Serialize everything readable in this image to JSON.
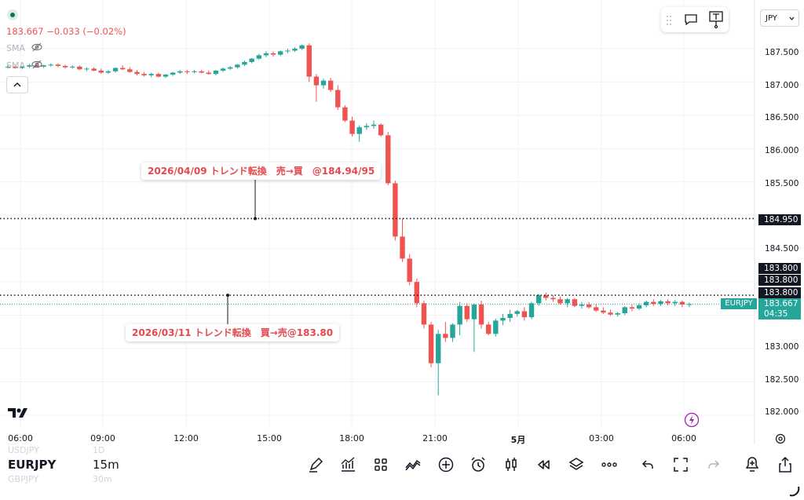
{
  "header": {
    "ohlc": "183.667  −0.033 (−0.02%)",
    "indicators": [
      "SMA",
      "SMA"
    ]
  },
  "currency": "JPY",
  "price_axis": {
    "ticks": [
      "187.500",
      "187.000",
      "186.500",
      "186.000",
      "185.500",
      "184.500",
      "183.000",
      "182.500",
      "182.000"
    ],
    "line_labels": [
      "184.950",
      "183.800",
      "183.800",
      "183.800"
    ],
    "last_price": "183.667",
    "countdown": "04:35",
    "symbol_tag": "EURJPY"
  },
  "time_axis": [
    "06:00",
    "09:00",
    "12:00",
    "15:00",
    "18:00",
    "21:00",
    "5月",
    "03:00",
    "06:00"
  ],
  "annotations": {
    "upper": "2026/04/09  トレンド転換　売→買　@184.94/95",
    "lower": "2026/03/11 トレンド転換　買→売@183.80"
  },
  "bottom": {
    "symbol": "EURJPY",
    "interval": "15m",
    "ghost_prev_symbol": "USDJPY",
    "ghost_prev_interval": "1D",
    "ghost_next_symbol": "GBPJPY",
    "ghost_next_interval": "30m"
  },
  "colors": {
    "up": "#26a69a",
    "down": "#ef5350",
    "label": "#e5484d"
  },
  "chart_data": {
    "type": "candlestick",
    "x": [
      "06:00",
      "06:15",
      "06:30",
      "06:45",
      "07:00",
      "07:15",
      "07:30",
      "07:45",
      "08:00",
      "08:15",
      "08:30",
      "08:45",
      "09:00",
      "09:15",
      "09:30",
      "09:45",
      "10:00",
      "10:15",
      "10:30",
      "10:45",
      "11:00",
      "11:15",
      "11:30",
      "11:45",
      "12:00",
      "12:15",
      "12:30",
      "12:45",
      "13:00",
      "13:15",
      "13:30",
      "13:45",
      "14:00",
      "14:15",
      "14:30",
      "14:45",
      "15:00",
      "15:15",
      "15:30",
      "15:45",
      "16:00",
      "16:15",
      "16:30",
      "16:45",
      "17:00",
      "17:15",
      "17:30",
      "17:45",
      "18:00",
      "18:15",
      "18:30",
      "18:45",
      "19:00",
      "19:15",
      "19:30",
      "19:45",
      "20:00",
      "20:15",
      "20:30",
      "20:45",
      "21:00",
      "21:15",
      "21:30",
      "21:45",
      "22:00",
      "22:15",
      "22:30",
      "22:45",
      "23:00",
      "23:15",
      "23:30",
      "23:45",
      "00:00",
      "00:15",
      "00:30",
      "00:45",
      "01:00",
      "01:15",
      "01:30",
      "01:45",
      "02:00",
      "02:15",
      "02:30",
      "02:45",
      "03:00",
      "03:15",
      "03:30",
      "03:45",
      "04:00",
      "04:15",
      "04:30",
      "04:45",
      "05:00",
      "05:15",
      "05:30",
      "05:45",
      "06:00",
      "06:15"
    ],
    "ohlc": [
      [
        187.22,
        187.25,
        187.2,
        187.23
      ],
      [
        187.23,
        187.26,
        187.2,
        187.21
      ],
      [
        187.21,
        187.24,
        187.19,
        187.23
      ],
      [
        187.23,
        187.27,
        187.21,
        187.25
      ],
      [
        187.25,
        187.27,
        187.22,
        187.23
      ],
      [
        187.23,
        187.26,
        187.21,
        187.25
      ],
      [
        187.25,
        187.28,
        187.23,
        187.26
      ],
      [
        187.26,
        187.28,
        187.22,
        187.24
      ],
      [
        187.24,
        187.26,
        187.2,
        187.22
      ],
      [
        187.22,
        187.25,
        187.2,
        187.23
      ],
      [
        187.23,
        187.25,
        187.18,
        187.19
      ],
      [
        187.19,
        187.22,
        187.16,
        187.2
      ],
      [
        187.2,
        187.22,
        187.16,
        187.17
      ],
      [
        187.17,
        187.2,
        187.12,
        187.14
      ],
      [
        187.14,
        187.18,
        187.12,
        187.16
      ],
      [
        187.16,
        187.22,
        187.14,
        187.21
      ],
      [
        187.21,
        187.25,
        187.18,
        187.19
      ],
      [
        187.19,
        187.22,
        187.14,
        187.15
      ],
      [
        187.15,
        187.18,
        187.1,
        187.12
      ],
      [
        187.12,
        187.15,
        187.08,
        187.1
      ],
      [
        187.1,
        187.14,
        187.07,
        187.12
      ],
      [
        187.12,
        187.14,
        187.07,
        187.08
      ],
      [
        187.08,
        187.12,
        187.06,
        187.11
      ],
      [
        187.11,
        187.15,
        187.09,
        187.14
      ],
      [
        187.14,
        187.18,
        187.12,
        187.16
      ],
      [
        187.16,
        187.18,
        187.12,
        187.15
      ],
      [
        187.15,
        187.18,
        187.13,
        187.16
      ],
      [
        187.16,
        187.18,
        187.13,
        187.14
      ],
      [
        187.14,
        187.17,
        187.11,
        187.12
      ],
      [
        187.12,
        187.18,
        187.1,
        187.17
      ],
      [
        187.17,
        187.22,
        187.15,
        187.2
      ],
      [
        187.2,
        187.24,
        187.18,
        187.22
      ],
      [
        187.22,
        187.27,
        187.2,
        187.26
      ],
      [
        187.26,
        187.32,
        187.24,
        187.3
      ],
      [
        187.3,
        187.36,
        187.28,
        187.35
      ],
      [
        187.35,
        187.42,
        187.33,
        187.4
      ],
      [
        187.4,
        187.46,
        187.37,
        187.43
      ],
      [
        187.43,
        187.46,
        187.38,
        187.41
      ],
      [
        187.41,
        187.47,
        187.39,
        187.46
      ],
      [
        187.46,
        187.5,
        187.43,
        187.47
      ],
      [
        187.47,
        187.52,
        187.45,
        187.5
      ],
      [
        187.5,
        187.56,
        187.48,
        187.55
      ],
      [
        187.55,
        187.58,
        187.0,
        187.08
      ],
      [
        187.08,
        187.12,
        186.7,
        186.95
      ],
      [
        186.95,
        187.05,
        186.9,
        187.02
      ],
      [
        187.02,
        187.06,
        186.85,
        186.88
      ],
      [
        186.88,
        186.95,
        186.58,
        186.62
      ],
      [
        186.62,
        186.65,
        186.4,
        186.42
      ],
      [
        186.42,
        186.48,
        186.18,
        186.22
      ],
      [
        186.22,
        186.35,
        186.1,
        186.32
      ],
      [
        186.32,
        186.38,
        186.28,
        186.34
      ],
      [
        186.34,
        186.42,
        186.3,
        186.36
      ],
      [
        186.36,
        186.38,
        186.18,
        186.2
      ],
      [
        186.2,
        186.25,
        185.45,
        185.48
      ],
      [
        185.48,
        185.52,
        184.62,
        184.68
      ],
      [
        184.68,
        184.95,
        184.3,
        184.35
      ],
      [
        184.35,
        184.42,
        183.95,
        184.0
      ],
      [
        184.0,
        184.05,
        183.62,
        183.68
      ],
      [
        183.68,
        183.72,
        183.3,
        183.36
      ],
      [
        183.36,
        183.4,
        182.72,
        182.78
      ],
      [
        182.78,
        183.28,
        182.3,
        183.22
      ],
      [
        183.22,
        183.4,
        183.1,
        183.16
      ],
      [
        183.16,
        183.38,
        183.1,
        183.36
      ],
      [
        183.36,
        183.7,
        183.2,
        183.64
      ],
      [
        183.64,
        183.68,
        183.4,
        183.44
      ],
      [
        183.44,
        183.68,
        182.95,
        183.66
      ],
      [
        183.66,
        183.72,
        183.3,
        183.36
      ],
      [
        183.36,
        183.4,
        183.2,
        183.22
      ],
      [
        183.22,
        183.45,
        183.18,
        183.42
      ],
      [
        183.42,
        183.52,
        183.35,
        183.46
      ],
      [
        183.46,
        183.58,
        183.4,
        183.52
      ],
      [
        183.52,
        183.58,
        183.48,
        183.56
      ],
      [
        183.56,
        183.62,
        183.42,
        183.47
      ],
      [
        183.47,
        183.7,
        183.44,
        183.68
      ],
      [
        183.68,
        183.82,
        183.64,
        183.8
      ],
      [
        183.8,
        183.84,
        183.72,
        183.76
      ],
      [
        183.76,
        183.8,
        183.7,
        183.74
      ],
      [
        183.74,
        183.78,
        183.66,
        183.68
      ],
      [
        183.68,
        183.76,
        183.62,
        183.74
      ],
      [
        183.74,
        183.76,
        183.62,
        183.64
      ],
      [
        183.64,
        183.7,
        183.6,
        183.66
      ],
      [
        183.66,
        183.7,
        183.6,
        183.62
      ],
      [
        183.62,
        183.66,
        183.55,
        183.57
      ],
      [
        183.57,
        183.62,
        183.52,
        183.54
      ],
      [
        183.54,
        183.58,
        183.49,
        183.51
      ],
      [
        183.51,
        183.55,
        183.48,
        183.53
      ],
      [
        183.53,
        183.64,
        183.5,
        183.62
      ],
      [
        183.62,
        183.66,
        183.56,
        183.6
      ],
      [
        183.6,
        183.68,
        183.58,
        183.65
      ],
      [
        183.65,
        183.72,
        183.62,
        183.7
      ],
      [
        183.7,
        183.74,
        183.64,
        183.67
      ],
      [
        183.67,
        183.73,
        183.64,
        183.71
      ],
      [
        183.71,
        183.74,
        183.65,
        183.68
      ],
      [
        183.68,
        183.73,
        183.64,
        183.7
      ],
      [
        183.7,
        183.72,
        183.62,
        183.66
      ],
      [
        183.66,
        183.69,
        183.62,
        183.667
      ]
    ],
    "horizontal_lines": [
      184.95,
      183.8
    ],
    "ylim": [
      181.87,
      187.9
    ]
  }
}
